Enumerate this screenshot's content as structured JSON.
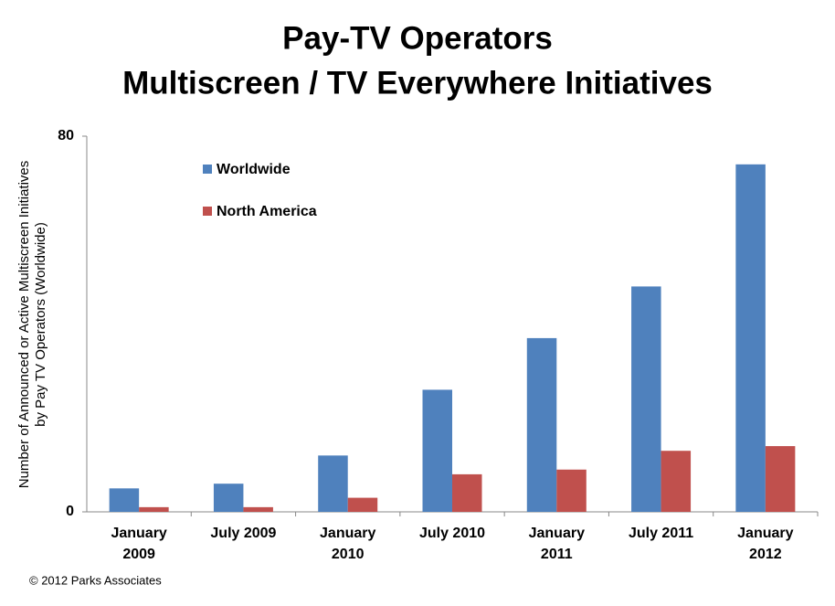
{
  "chart_data": {
    "type": "bar",
    "title": [
      "Pay-TV Operators",
      "Multiscreen / TV Everywhere Initiatives"
    ],
    "ylabel": [
      "Number of Announced or Active Multiscreen Initiatives",
      "by Pay TV Operators (Worldwide)"
    ],
    "categories": [
      "January 2009",
      "July 2009",
      "January 2010",
      "July 2010",
      "January 2011",
      "July 2011",
      "January 2012"
    ],
    "series": [
      {
        "name": "Worldwide",
        "color": "#4f81bd",
        "values": [
          5,
          6,
          12,
          26,
          37,
          48,
          74
        ]
      },
      {
        "name": "North America",
        "color": "#c0504d",
        "values": [
          1,
          1,
          3,
          8,
          9,
          13,
          14
        ]
      }
    ],
    "ylim": [
      0,
      80
    ],
    "yticks": [
      0,
      80
    ],
    "grid": false,
    "legend": "upper-left",
    "footer": "© 2012 Parks Associates"
  }
}
